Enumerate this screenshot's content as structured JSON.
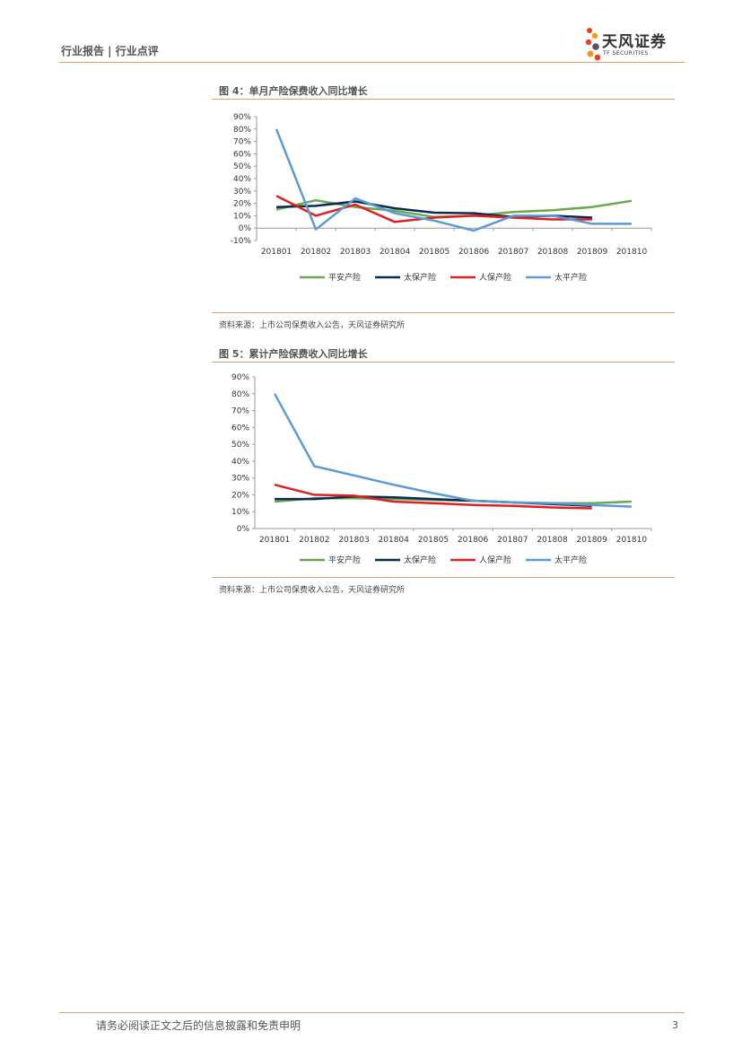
{
  "header": {
    "left_text": "行业报告 | 行业点评",
    "brand_cn": "天风证券",
    "brand_en": "TF SECURITIES"
  },
  "figures": {
    "fig4": {
      "title": "图 4：单月产险保费收入同比增长",
      "source": "资料来源：上市公司保费收入公告，天风证券研究所"
    },
    "fig5": {
      "title": "图 5：累计产险保费收入同比增长",
      "source": "资料来源：上市公司保费收入公告，天风证券研究所"
    }
  },
  "colors": {
    "平安产险": "#6aa84f",
    "太保产险": "#0b2a52",
    "人保产险": "#e02020",
    "太平产险": "#5b9bd5",
    "accent": "#e8a060"
  },
  "chart_data": [
    {
      "type": "line",
      "title": "图 4：单月产险保费收入同比增长",
      "categories": [
        "201801",
        "201802",
        "201803",
        "201804",
        "201805",
        "201806",
        "201807",
        "201808",
        "201809",
        "201810"
      ],
      "ylim": [
        -0.1,
        0.9
      ],
      "yticks": [
        "-10%",
        "0%",
        "10%",
        "20%",
        "30%",
        "40%",
        "50%",
        "60%",
        "70%",
        "80%",
        "90%"
      ],
      "legend_position": "bottom",
      "series": [
        {
          "name": "平安产险",
          "values": [
            0.15,
            0.225,
            0.17,
            0.14,
            0.09,
            0.1,
            0.13,
            0.145,
            0.17,
            0.22
          ]
        },
        {
          "name": "太保产险",
          "values": [
            0.17,
            0.18,
            0.215,
            0.16,
            0.125,
            0.12,
            0.09,
            0.1,
            0.085,
            null
          ]
        },
        {
          "name": "人保产险",
          "values": [
            0.26,
            0.1,
            0.19,
            0.05,
            0.085,
            0.1,
            0.085,
            0.07,
            0.07,
            null
          ]
        },
        {
          "name": "太平产险",
          "values": [
            0.8,
            -0.01,
            0.24,
            0.12,
            0.06,
            -0.02,
            0.1,
            0.1,
            0.035,
            0.035
          ]
        }
      ]
    },
    {
      "type": "line",
      "title": "图 5：累计产险保费收入同比增长",
      "categories": [
        "201801",
        "201802",
        "201803",
        "201804",
        "201805",
        "201806",
        "201807",
        "201808",
        "201809",
        "201810"
      ],
      "ylim": [
        0,
        0.9
      ],
      "yticks": [
        "0%",
        "10%",
        "20%",
        "30%",
        "40%",
        "50%",
        "60%",
        "70%",
        "80%",
        "90%"
      ],
      "legend_position": "bottom",
      "series": [
        {
          "name": "平安产险",
          "values": [
            0.16,
            0.18,
            0.18,
            0.175,
            0.17,
            0.165,
            0.155,
            0.15,
            0.15,
            0.16
          ]
        },
        {
          "name": "太保产险",
          "values": [
            0.175,
            0.175,
            0.19,
            0.185,
            0.175,
            0.165,
            0.155,
            0.145,
            0.135,
            null
          ]
        },
        {
          "name": "人保产险",
          "values": [
            0.26,
            0.2,
            0.195,
            0.16,
            0.15,
            0.14,
            0.135,
            0.125,
            0.12,
            null
          ]
        },
        {
          "name": "太平产险",
          "values": [
            0.8,
            0.37,
            0.315,
            0.26,
            0.21,
            0.165,
            0.155,
            0.15,
            0.14,
            0.13
          ]
        }
      ]
    }
  ],
  "footer": {
    "disclaimer": "请务必阅读正文之后的信息披露和免责申明",
    "page": "3"
  }
}
